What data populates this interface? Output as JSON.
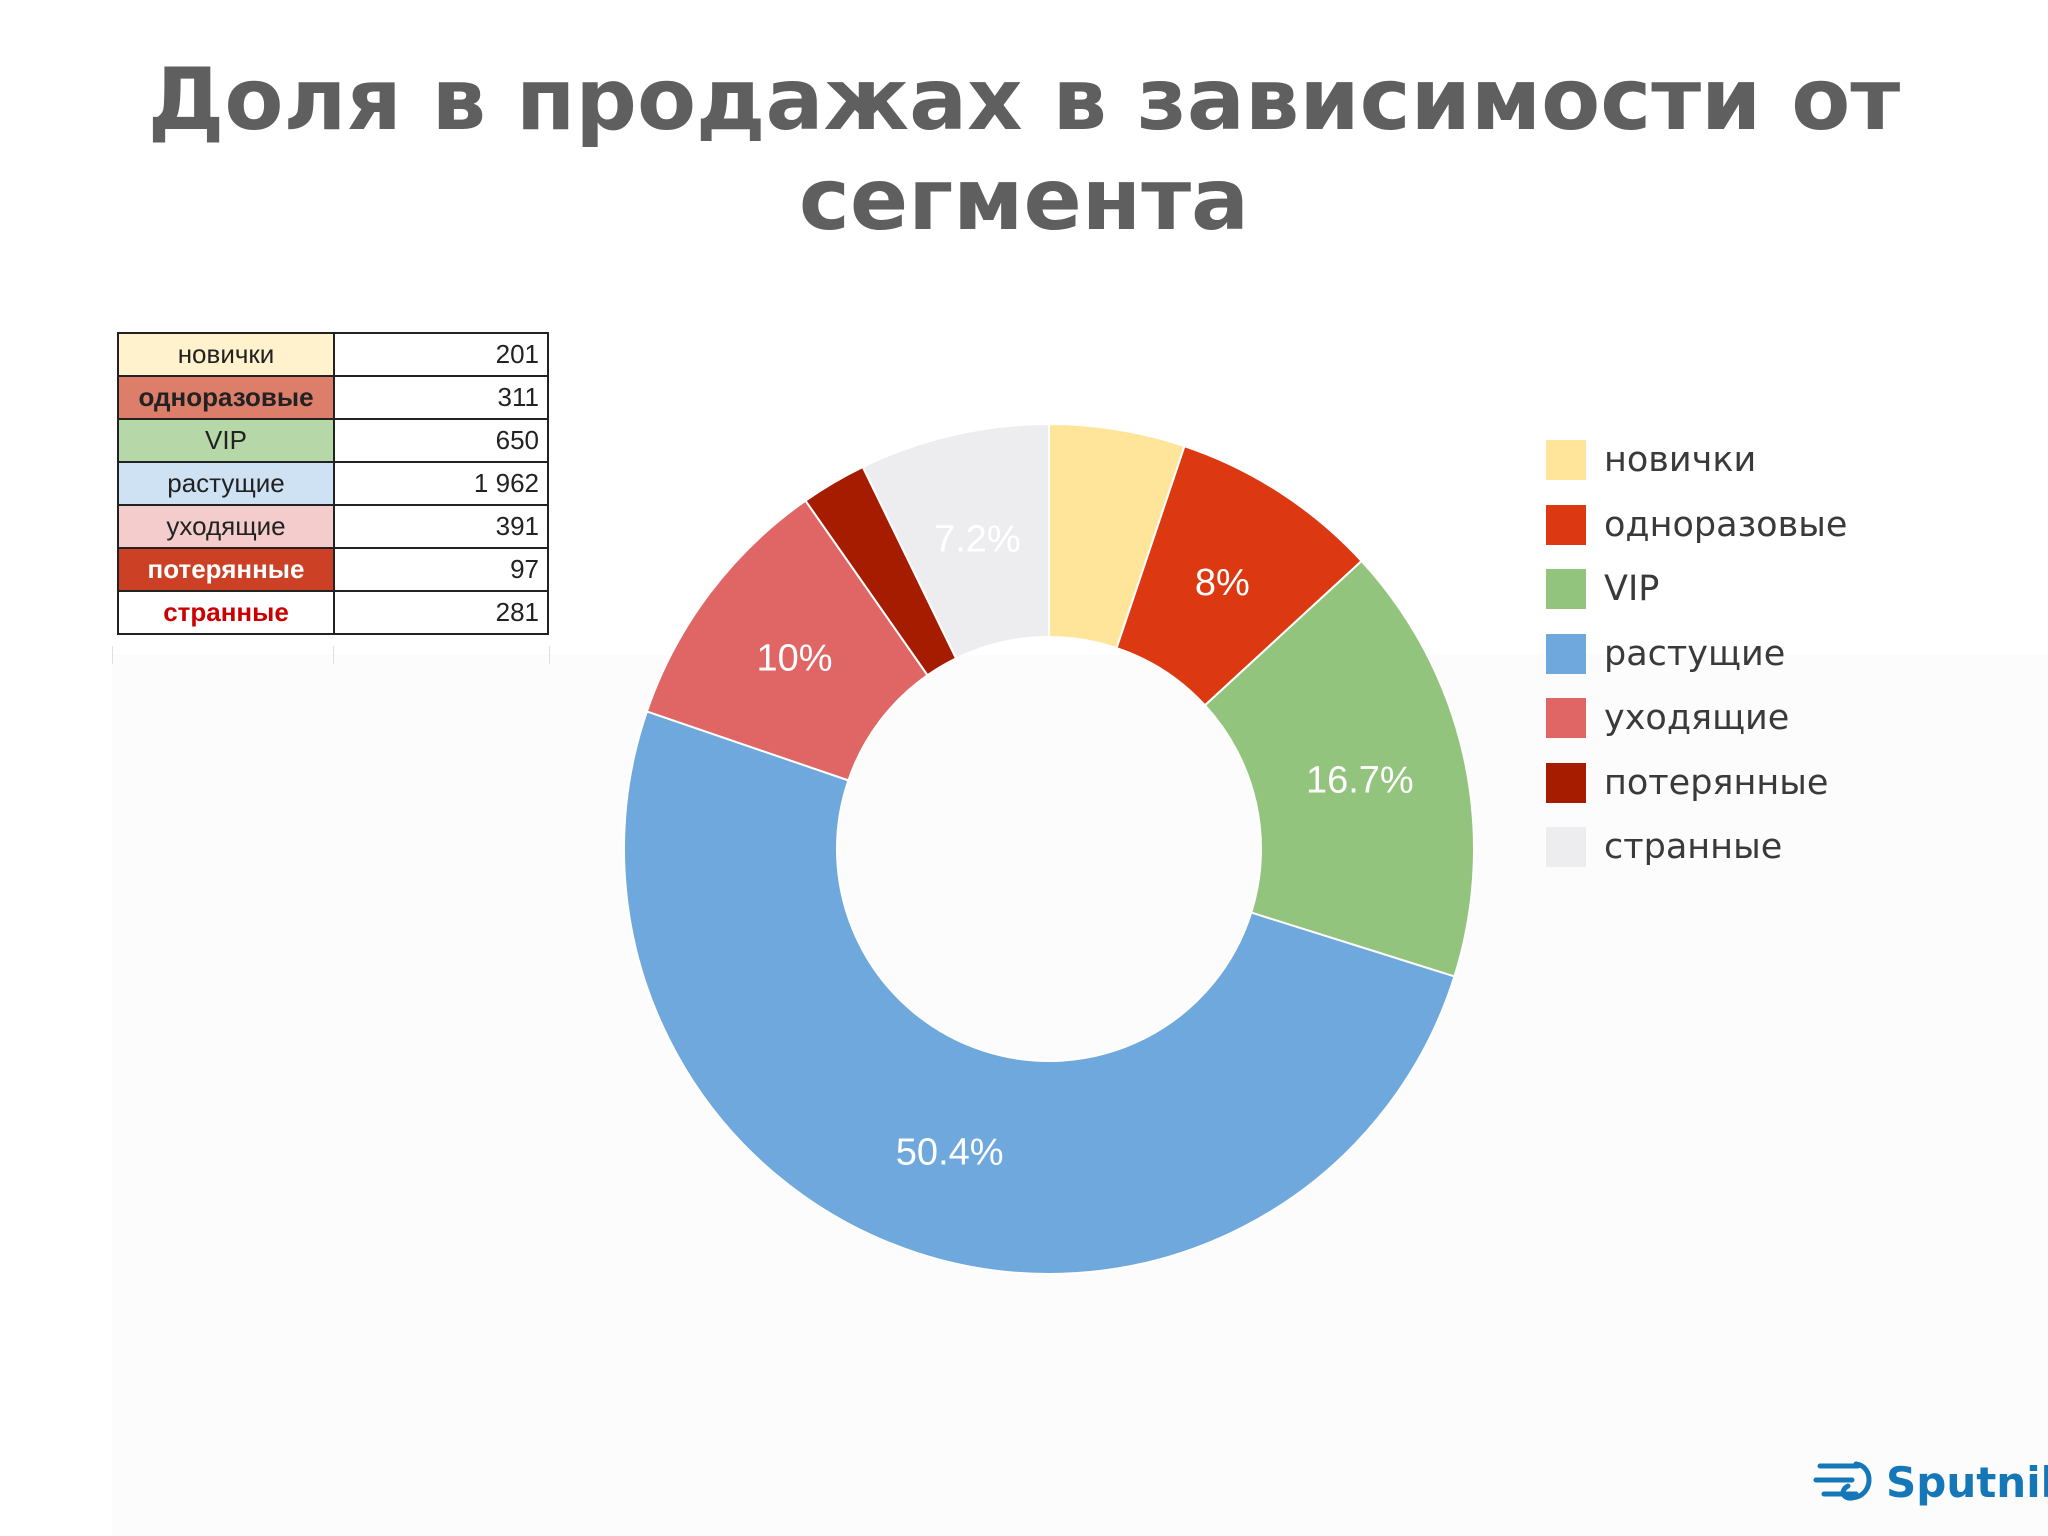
{
  "title": {
    "line1": "Доля в продажах в зависимости от",
    "line2": "сегмента"
  },
  "table": {
    "rows": [
      {
        "name": "новички",
        "value": "201",
        "bg": "#fff2cc",
        "color": "#222222",
        "bold": false
      },
      {
        "name": "одноразовые",
        "value": "311",
        "bg": "#dd7e6b",
        "color": "#222222",
        "bold": true
      },
      {
        "name": "VIP",
        "value": "650",
        "bg": "#b6d7a8",
        "color": "#222222",
        "bold": false
      },
      {
        "name": "растущие",
        "value": "1 962",
        "bg": "#cfe2f3",
        "color": "#222222",
        "bold": false
      },
      {
        "name": "уходящие",
        "value": "391",
        "bg": "#f4cccc",
        "color": "#222222",
        "bold": false
      },
      {
        "name": "потерянные",
        "value": "97",
        "bg": "#cc4125",
        "color": "#ffffff",
        "bold": true
      },
      {
        "name": "странные",
        "value": "281",
        "bg": "#ffffff",
        "color": "#cc0000",
        "bold": true
      }
    ]
  },
  "chart_data": {
    "type": "pie",
    "donut": true,
    "legend_position": "right",
    "series": [
      {
        "name": "новички",
        "value": 201,
        "color": "#ffe599",
        "label": ""
      },
      {
        "name": "одноразовые",
        "value": 311,
        "color": "#dc3912",
        "label": "8%"
      },
      {
        "name": "VIP",
        "value": 650,
        "color": "#93c47d",
        "label": "16.7%"
      },
      {
        "name": "растущие",
        "value": 1962,
        "color": "#6fa8dc",
        "label": "50.4%"
      },
      {
        "name": "уходящие",
        "value": 391,
        "color": "#e06666",
        "label": "10%"
      },
      {
        "name": "потерянные",
        "value": 97,
        "color": "#a61c00",
        "label": ""
      },
      {
        "name": "странные",
        "value": 281,
        "color": "#ededf0",
        "label": "7.2%"
      }
    ]
  },
  "logo": {
    "text": "Sputnik"
  }
}
